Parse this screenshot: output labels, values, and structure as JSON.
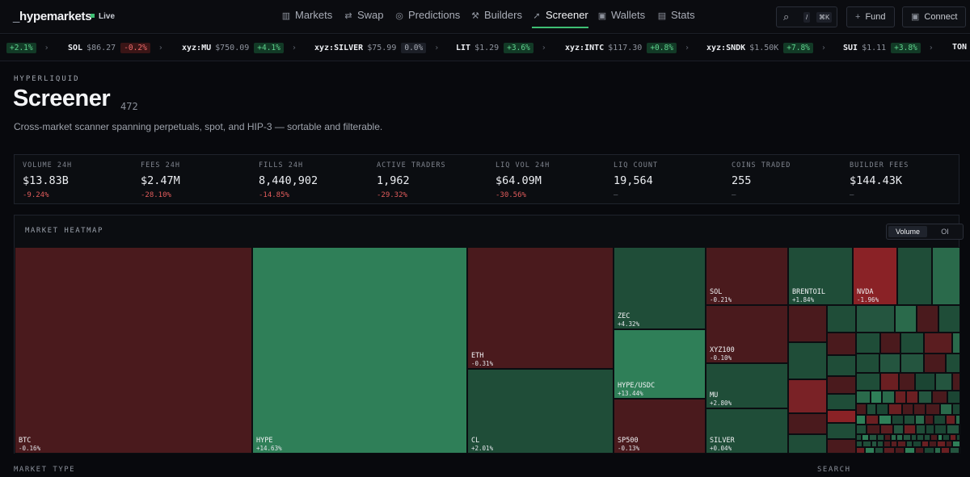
{
  "brand": {
    "prefix": "_",
    "name": "hypemarkets",
    "status": "Live"
  },
  "nav": [
    {
      "label": "Markets",
      "icon": "chart-icon",
      "glyph": "▥"
    },
    {
      "label": "Swap",
      "icon": "swap-icon",
      "glyph": "⇄"
    },
    {
      "label": "Predictions",
      "icon": "check-circle-icon",
      "glyph": "◎"
    },
    {
      "label": "Builders",
      "icon": "wrench-icon",
      "glyph": "⚒"
    },
    {
      "label": "Screener",
      "icon": "rocket-icon",
      "glyph": "➚",
      "active": true
    },
    {
      "label": "Wallets",
      "icon": "wallet-icon",
      "glyph": "▣"
    },
    {
      "label": "Stats",
      "icon": "bar-chart-icon",
      "glyph": "▤"
    }
  ],
  "actions": {
    "search_key1": "/",
    "search_key2": "⌘K",
    "fund": "Fund",
    "connect": "Connect"
  },
  "ticker": [
    {
      "sym": "",
      "price": "",
      "change": "+2.1%",
      "dir": "up"
    },
    {
      "sym": "SOL",
      "price": "$86.27",
      "change": "-0.2%",
      "dir": "down"
    },
    {
      "sym": "xyz:MU",
      "price": "$750.09",
      "change": "+4.1%",
      "dir": "up"
    },
    {
      "sym": "xyz:SILVER",
      "price": "$75.99",
      "change": "0.0%",
      "dir": "flat"
    },
    {
      "sym": "LIT",
      "price": "$1.29",
      "change": "+3.6%",
      "dir": "up"
    },
    {
      "sym": "xyz:INTC",
      "price": "$117.30",
      "change": "+0.8%",
      "dir": "up"
    },
    {
      "sym": "xyz:SNDK",
      "price": "$1.50K",
      "change": "+7.8%",
      "dir": "up"
    },
    {
      "sym": "SUI",
      "price": "$1.11",
      "change": "+3.8%",
      "dir": "up"
    },
    {
      "sym": "TON",
      "price": "",
      "change": "",
      "dir": "up"
    }
  ],
  "header": {
    "eyebrow": "HYPERLIQUID",
    "title": "Screener",
    "count": "472",
    "subtitle": "Cross-market scanner spanning perpetuals, spot, and HIP-3 — sortable and filterable."
  },
  "stats": [
    {
      "label": "VOLUME 24H",
      "value": "$13.83B",
      "delta": "-9.24%",
      "kind": "neg"
    },
    {
      "label": "FEES 24H",
      "value": "$2.47M",
      "delta": "-28.10%",
      "kind": "neg"
    },
    {
      "label": "FILLS 24H",
      "value": "8,440,902",
      "delta": "-14.85%",
      "kind": "neg"
    },
    {
      "label": "ACTIVE TRADERS",
      "value": "1,962",
      "delta": "-29.32%",
      "kind": "neg"
    },
    {
      "label": "LIQ VOL 24H",
      "value": "$64.09M",
      "delta": "-30.56%",
      "kind": "neg"
    },
    {
      "label": "LIQ COUNT",
      "value": "19,564",
      "delta": "—",
      "kind": "nil"
    },
    {
      "label": "COINS TRADED",
      "value": "255",
      "delta": "—",
      "kind": "nil"
    },
    {
      "label": "BUILDER FEES",
      "value": "$144.43K",
      "delta": "—",
      "kind": "nil"
    }
  ],
  "heatmap": {
    "title": "MARKET HEATMAP",
    "toggle": [
      "Volume",
      "OI"
    ],
    "selected": "Volume",
    "labeled_cells": [
      {
        "name": "BTC",
        "change": "-0.16%"
      },
      {
        "name": "HYPE",
        "change": "+14.63%"
      },
      {
        "name": "ETH",
        "change": "-0.31%"
      },
      {
        "name": "CL",
        "change": "+2.01%"
      },
      {
        "name": "ZEC",
        "change": "+4.32%"
      },
      {
        "name": "HYPE/USDC",
        "change": "+13.44%"
      },
      {
        "name": "SP500",
        "change": "-0.13%"
      },
      {
        "name": "SOL",
        "change": "-0.21%"
      },
      {
        "name": "XYZ100",
        "change": "-0.10%"
      },
      {
        "name": "MU",
        "change": "+2.80%"
      },
      {
        "name": "SILVER",
        "change": "+0.04%"
      },
      {
        "name": "BRENTOIL",
        "change": "+1.84%"
      },
      {
        "name": "NVDA",
        "change": "-1.96%"
      }
    ],
    "colors": {
      "up_strong": "#2f7f58",
      "up": "#1f4d38",
      "down": "#4a1a1d",
      "down_strong": "#8a2226"
    }
  },
  "footer": {
    "left": "MARKET TYPE",
    "right": "SEARCH"
  }
}
